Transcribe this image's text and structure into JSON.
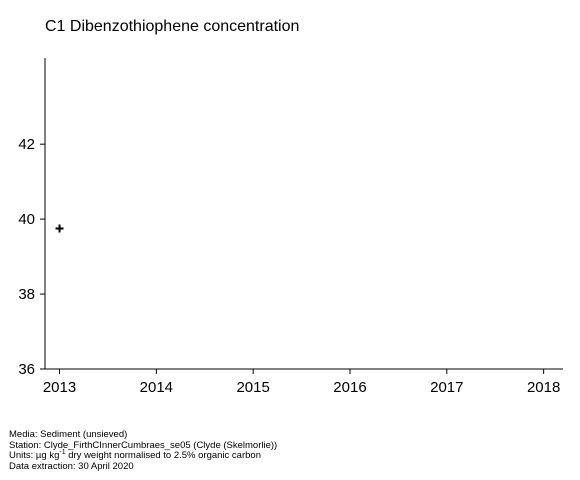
{
  "chart_data": {
    "type": "scatter",
    "title": "C1 Dibenzothiophene concentration",
    "xlabel": "",
    "ylabel": "",
    "x_ticks": [
      2013,
      2014,
      2015,
      2016,
      2017,
      2018
    ],
    "y_ticks": [
      36,
      38,
      40,
      42
    ],
    "xlim": [
      2012.85,
      2018.2
    ],
    "ylim": [
      36,
      44.3
    ],
    "marker": "+",
    "grid": false,
    "series": [
      {
        "points": [
          {
            "x": 2013,
            "y": 39.75
          }
        ]
      }
    ]
  },
  "footer": {
    "media": "Media: Sediment (unsieved)",
    "station": "Station: Clyde_FirthCInnerCumbraes_se05 (Clyde (Skelmorlie))",
    "units_prefix": "Units:  µg kg",
    "units_sup": "-1",
    "units_suffix": " dry weight normalised to 2.5% organic carbon",
    "extraction": "Data extraction: 30 April 2020"
  }
}
